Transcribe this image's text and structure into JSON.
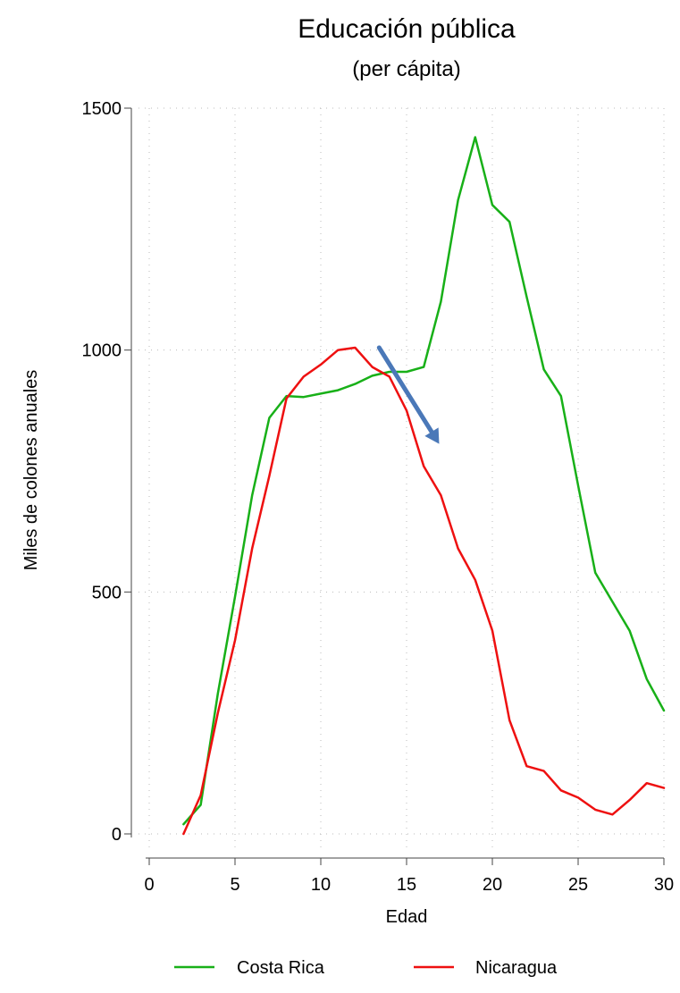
{
  "chart_data": {
    "type": "line",
    "title": "Educación pública",
    "subtitle": "(per cápita)",
    "xlabel": "Edad",
    "ylabel": "Miles de colones anuales",
    "xlim": [
      0,
      30
    ],
    "ylim": [
      0,
      1500
    ],
    "xticks": [
      0,
      5,
      10,
      15,
      20,
      25,
      30
    ],
    "yticks": [
      0,
      500,
      1000,
      1500
    ],
    "grid": true,
    "legend_position": "bottom",
    "series": [
      {
        "name": "Costa Rica",
        "color": "#18b018",
        "x": [
          2,
          3,
          4,
          5,
          6,
          7,
          8,
          9,
          10,
          11,
          12,
          13,
          14,
          15,
          16,
          17,
          18,
          19,
          20,
          21,
          22,
          23,
          24,
          25,
          26,
          27,
          28,
          29,
          30
        ],
        "y": [
          20,
          60,
          290,
          490,
          700,
          860,
          905,
          903,
          910,
          917,
          930,
          947,
          955,
          955,
          965,
          1100,
          1310,
          1440,
          1300,
          1265,
          1110,
          960,
          905,
          720,
          540,
          480,
          420,
          320,
          255
        ]
      },
      {
        "name": "Nicaragua",
        "color": "#ee1010",
        "x": [
          2,
          3,
          4,
          5,
          6,
          7,
          8,
          9,
          10,
          11,
          12,
          13,
          14,
          15,
          16,
          17,
          18,
          19,
          20,
          21,
          22,
          23,
          24,
          25,
          26,
          27,
          28,
          29,
          30
        ],
        "y": [
          0,
          80,
          250,
          400,
          590,
          740,
          900,
          945,
          970,
          1000,
          1005,
          965,
          945,
          875,
          760,
          700,
          590,
          525,
          420,
          235,
          140,
          130,
          90,
          75,
          50,
          40,
          70,
          105,
          95
        ]
      }
    ],
    "annotations": [
      {
        "type": "arrow",
        "color": "#4a78b8",
        "from": [
          13.4,
          1005
        ],
        "to": [
          16.9,
          806
        ]
      }
    ]
  }
}
